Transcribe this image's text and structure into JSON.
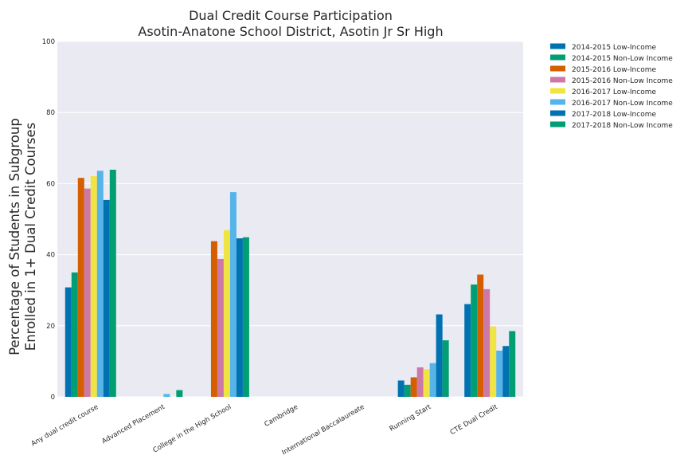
{
  "chart_data": {
    "type": "bar",
    "title": [
      "Dual Credit Course Participation",
      "Asotin-Anatone School District, Asotin Jr Sr High"
    ],
    "xlabel": "",
    "ylabel": [
      "Percentage of Students in Subgroup",
      "Enrolled in 1+ Dual Credit Courses"
    ],
    "ylim": [
      0,
      100
    ],
    "yticks": [
      0,
      20,
      40,
      60,
      80,
      100
    ],
    "grid": true,
    "legend_position": "outside-top-right",
    "categories": [
      "Any dual credit course",
      "Advanced Placement",
      "College in the High School",
      "Cambridge",
      "International Baccalaureate",
      "Running Start",
      "CTE Dual Credit"
    ],
    "series": [
      {
        "name": "2014-2015 Low-Income",
        "color": "#0072b2",
        "values": [
          30.8,
          null,
          null,
          null,
          null,
          4.6,
          26.1
        ]
      },
      {
        "name": "2014-2015 Non-Low Income",
        "color": "#009e73",
        "values": [
          35.0,
          null,
          null,
          null,
          null,
          3.4,
          31.6
        ]
      },
      {
        "name": "2015-2016 Low-Income",
        "color": "#d55e00",
        "values": [
          61.6,
          null,
          43.8,
          null,
          null,
          5.5,
          34.4
        ]
      },
      {
        "name": "2015-2016 Non-Low Income",
        "color": "#cc79a7",
        "values": [
          58.6,
          null,
          38.8,
          null,
          null,
          8.3,
          30.3
        ]
      },
      {
        "name": "2016-2017 Low-Income",
        "color": "#f0e442",
        "values": [
          62.1,
          null,
          46.9,
          null,
          null,
          7.8,
          19.8
        ]
      },
      {
        "name": "2016-2017 Non-Low Income",
        "color": "#56b4e9",
        "values": [
          63.6,
          0.8,
          57.6,
          null,
          null,
          9.5,
          13.0
        ]
      },
      {
        "name": "2017-2018 Low-Income",
        "color": "#0072b2",
        "values": [
          55.4,
          null,
          44.6,
          null,
          null,
          23.2,
          14.3
        ]
      },
      {
        "name": "2017-2018 Non-Low Income",
        "color": "#009e73",
        "values": [
          63.9,
          1.9,
          44.9,
          null,
          null,
          15.9,
          18.5
        ]
      }
    ]
  }
}
